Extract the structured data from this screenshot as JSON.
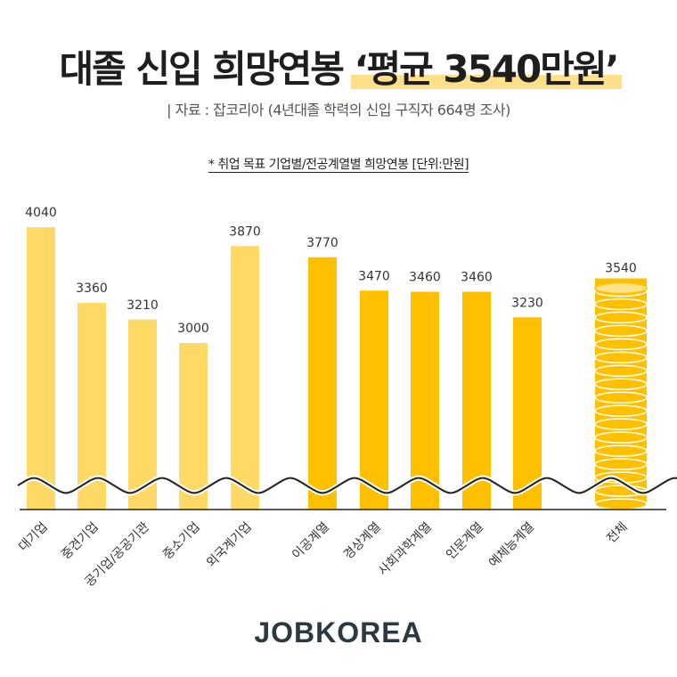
{
  "header": {
    "title_main": "대졸 신입 희망연봉 ",
    "title_highlight": "‘평균 3540만원’",
    "source": "| 자료 : 잡코리아 (4년대졸 학력의 신입 구직자 664명 조사)",
    "note": "* 취업 목표 기업별/전공계열별 희망연봉 [단위:만원]"
  },
  "brand": {
    "logo": "JOBKOREA"
  },
  "colors": {
    "light_bar": "#FFD966",
    "dark_bar": "#FFC000",
    "coin": "#FFC000",
    "coin_highlight": "#FFE38A",
    "text": "#1e1e1e"
  },
  "chart_data": {
    "type": "bar",
    "title": "대졸 신입 희망연봉 ‘평균 3540만원’",
    "unit": "만원",
    "groups": [
      {
        "name": "",
        "categories": [
          "대기업",
          "중견기업",
          "공기업/공공기관",
          "중소기업",
          "외국계기업"
        ],
        "values": [
          4040,
          3360,
          3210,
          3000,
          3870
        ],
        "color": "#FFD966"
      },
      {
        "name": "",
        "categories": [
          "이공계열",
          "경상계열",
          "사회과학계열",
          "인문계열",
          "예체능계열"
        ],
        "values": [
          3770,
          3470,
          3460,
          3460,
          3230
        ],
        "color": "#FFC000"
      },
      {
        "name": "",
        "categories": [
          "전체"
        ],
        "values": [
          3540
        ],
        "color": "#FFC000",
        "style": "coin-stack"
      }
    ],
    "axis_break": true,
    "grid": false,
    "legend": "none"
  }
}
